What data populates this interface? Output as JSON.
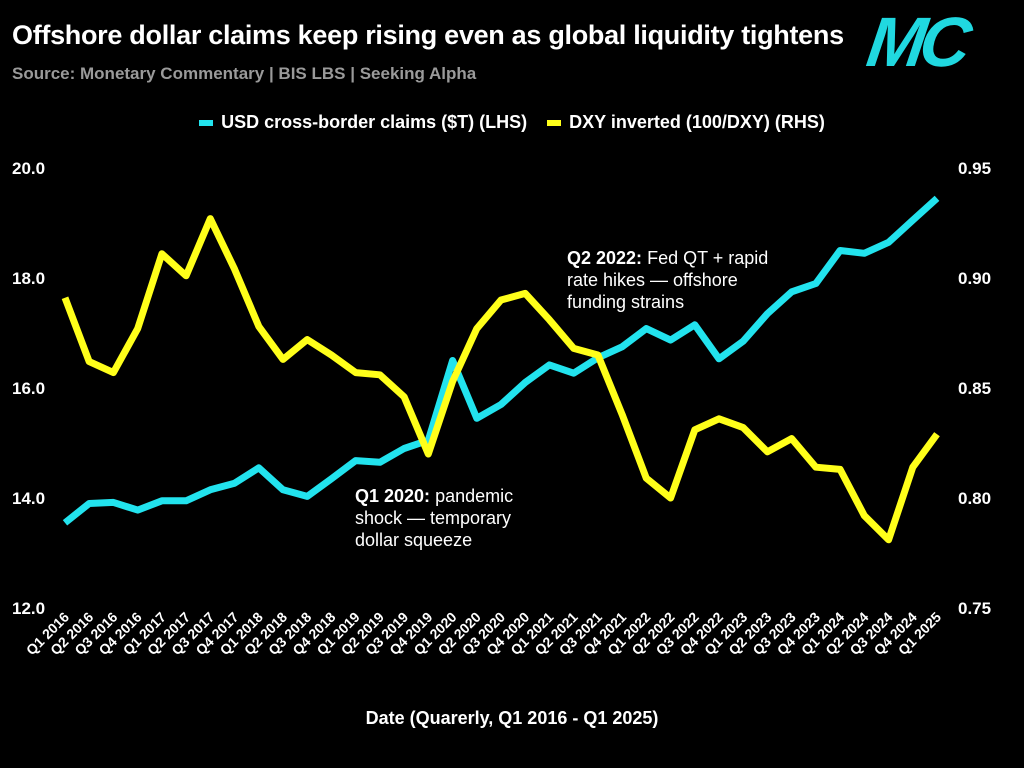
{
  "header": {
    "title": "Offshore dollar claims keep rising even as global liquidity tightens",
    "subtitle": "Source: Monetary Commentary | BIS LBS | Seeking Alpha",
    "logo": "MC"
  },
  "colors": {
    "cyan": "#22e3ee",
    "yellow": "#ffff1a",
    "background": "#000000"
  },
  "chart_data": {
    "type": "line",
    "title": "Offshore dollar claims keep rising even as global liquidity tightens",
    "xlabel": "Date (Quarerly, Q1 2016 - Q1 2025)",
    "legend_position": "top-center",
    "grid": false,
    "categories": [
      "Q1 2016",
      "Q2 2016",
      "Q3 2016",
      "Q4 2016",
      "Q1 2017",
      "Q2 2017",
      "Q3 2017",
      "Q4 2017",
      "Q1 2018",
      "Q2 2018",
      "Q3 2018",
      "Q4 2018",
      "Q1 2019",
      "Q2 2019",
      "Q3 2019",
      "Q4 2019",
      "Q1 2020",
      "Q2 2020",
      "Q3 2020",
      "Q4 2020",
      "Q1 2021",
      "Q2 2021",
      "Q3 2021",
      "Q4 2021",
      "Q1 2022",
      "Q2 2022",
      "Q3 2022",
      "Q4 2022",
      "Q1 2023",
      "Q2 2023",
      "Q3 2023",
      "Q4 2023",
      "Q1 2024",
      "Q2 2024",
      "Q3 2024",
      "Q4 2024",
      "Q1 2025"
    ],
    "y_left": {
      "label": "USD cross-border claims ($T)",
      "range": [
        12,
        20
      ],
      "ticks": [
        "12.0",
        "14.0",
        "16.0",
        "18.0",
        "20.0"
      ]
    },
    "y_right": {
      "label": "DXY inverted (100/DXY)",
      "range": [
        0.75,
        0.95
      ],
      "ticks": [
        "0.75",
        "0.80",
        "0.85",
        "0.90",
        "0.95"
      ]
    },
    "series": [
      {
        "name": "USD cross-border claims ($T) (LHS)",
        "axis": "left",
        "color": "#22e3ee",
        "values": [
          13.55,
          13.9,
          13.92,
          13.78,
          13.95,
          13.95,
          14.15,
          14.27,
          14.55,
          14.15,
          14.03,
          14.35,
          14.68,
          14.65,
          14.9,
          15.05,
          16.5,
          15.45,
          15.7,
          16.1,
          16.42,
          16.27,
          16.55,
          16.75,
          17.08,
          16.87,
          17.15,
          16.53,
          16.85,
          17.35,
          17.75,
          17.9,
          18.5,
          18.45,
          18.65,
          19.05,
          19.45
        ]
      },
      {
        "name": "DXY inverted (100/DXY) (RHS)",
        "axis": "right",
        "color": "#ffff1a",
        "values": [
          0.891,
          0.862,
          0.857,
          0.877,
          0.911,
          0.901,
          0.927,
          0.904,
          0.878,
          0.863,
          0.872,
          0.865,
          0.857,
          0.856,
          0.846,
          0.82,
          0.853,
          0.877,
          0.89,
          0.893,
          0.881,
          0.868,
          0.865,
          0.838,
          0.809,
          0.8,
          0.831,
          0.836,
          0.832,
          0.821,
          0.827,
          0.814,
          0.813,
          0.792,
          0.781,
          0.814,
          0.829
        ]
      }
    ],
    "annotations": [
      {
        "bold": "Q1 2020:",
        "text": "pandemic shock — temporary dollar squeeze"
      },
      {
        "bold": "Q2 2022:",
        "text": "Fed QT + rapid rate hikes — offshore funding strains"
      }
    ]
  }
}
